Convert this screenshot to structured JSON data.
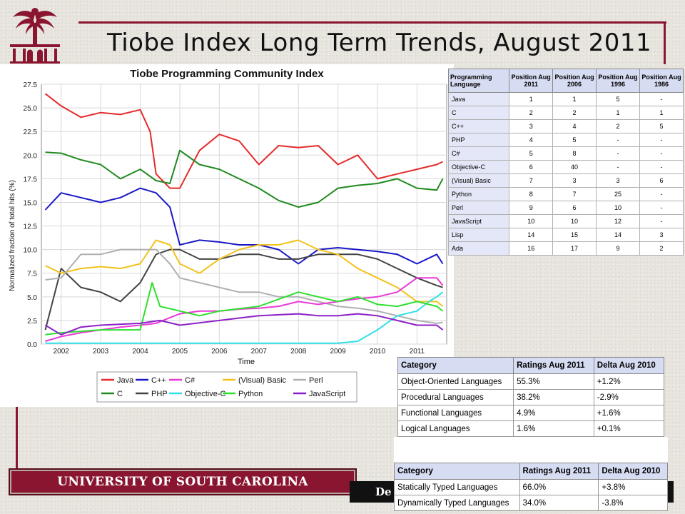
{
  "slide": {
    "title": "Tiobe Index Long Term Trends, August 2011",
    "banner": "UNIVERSITY OF SOUTH CAROLINA",
    "banner_right_partial": "De"
  },
  "colors": {
    "garnet": "#8a1530",
    "table_header": "#d6dcf2"
  },
  "chart_data": {
    "type": "line",
    "title": "Tiobe Programming Community Index",
    "xlabel": "Time",
    "ylabel": "Normalized fraction of total hits (%)",
    "xlim": [
      2001.5,
      2011.75
    ],
    "ylim": [
      0,
      27.5
    ],
    "xticks": [
      "2002",
      "2003",
      "2004",
      "2005",
      "2006",
      "2007",
      "2008",
      "2009",
      "2010",
      "2011"
    ],
    "yticks": [
      "0.0",
      "2.5",
      "5.0",
      "7.5",
      "10.0",
      "12.5",
      "15.0",
      "17.5",
      "20.0",
      "22.5",
      "25.0",
      "27.5"
    ],
    "grid": true,
    "legend_position": "bottom",
    "series": [
      {
        "name": "Java",
        "color": "#e52a2a",
        "x": [
          2001.6,
          2002.0,
          2002.5,
          2003.0,
          2003.5,
          2004.0,
          2004.25,
          2004.4,
          2004.75,
          2005.0,
          2005.5,
          2006.0,
          2006.5,
          2007.0,
          2007.5,
          2008.0,
          2008.5,
          2009.0,
          2009.5,
          2010.0,
          2010.5,
          2011.0,
          2011.5,
          2011.65
        ],
        "y": [
          26.5,
          25.2,
          24.0,
          24.5,
          24.3,
          24.8,
          22.5,
          18.0,
          16.5,
          16.5,
          20.5,
          22.2,
          21.5,
          19.0,
          21.0,
          20.8,
          21.0,
          19.0,
          20.0,
          17.5,
          18.0,
          18.5,
          19.0,
          19.3
        ]
      },
      {
        "name": "C",
        "color": "#1f8a1f",
        "x": [
          2001.6,
          2002.0,
          2002.5,
          2003.0,
          2003.5,
          2004.0,
          2004.4,
          2004.75,
          2005.0,
          2005.5,
          2006.0,
          2006.5,
          2007.0,
          2007.5,
          2008.0,
          2008.5,
          2009.0,
          2009.5,
          2010.0,
          2010.5,
          2011.0,
          2011.5,
          2011.65
        ],
        "y": [
          20.3,
          20.2,
          19.5,
          19.0,
          17.5,
          18.5,
          17.3,
          17.0,
          20.5,
          19.0,
          18.5,
          17.5,
          16.5,
          15.2,
          14.5,
          15.0,
          16.5,
          16.8,
          17.0,
          17.5,
          16.5,
          16.3,
          17.5
        ]
      },
      {
        "name": "C++",
        "color": "#1818c8",
        "x": [
          2001.6,
          2002.0,
          2002.5,
          2003.0,
          2003.5,
          2004.0,
          2004.4,
          2004.75,
          2005.0,
          2005.5,
          2006.0,
          2006.5,
          2007.0,
          2007.5,
          2008.0,
          2008.5,
          2009.0,
          2009.5,
          2010.0,
          2010.5,
          2011.0,
          2011.5,
          2011.65
        ],
        "y": [
          14.2,
          16.0,
          15.5,
          15.0,
          15.5,
          16.5,
          16.0,
          14.5,
          10.5,
          11.0,
          10.8,
          10.5,
          10.5,
          10.0,
          8.5,
          10.0,
          10.2,
          10.0,
          9.8,
          9.5,
          8.5,
          9.5,
          8.5
        ]
      },
      {
        "name": "PHP",
        "color": "#444444",
        "x": [
          2001.6,
          2002.0,
          2002.5,
          2003.0,
          2003.5,
          2004.0,
          2004.4,
          2004.75,
          2005.0,
          2005.5,
          2006.0,
          2006.5,
          2007.0,
          2007.5,
          2008.0,
          2008.5,
          2009.0,
          2009.5,
          2010.0,
          2010.5,
          2011.0,
          2011.5,
          2011.65
        ],
        "y": [
          1.5,
          8.0,
          6.0,
          5.5,
          4.5,
          6.5,
          9.5,
          10.0,
          10.0,
          9.0,
          9.0,
          9.5,
          9.5,
          9.0,
          9.0,
          9.5,
          9.5,
          9.5,
          9.0,
          8.0,
          7.0,
          6.2,
          6.0
        ]
      },
      {
        "name": "(Visual) Basic",
        "color": "#f2c21b",
        "x": [
          2001.6,
          2002.0,
          2002.5,
          2003.0,
          2003.5,
          2004.0,
          2004.4,
          2004.75,
          2005.0,
          2005.5,
          2006.0,
          2006.5,
          2007.0,
          2007.5,
          2008.0,
          2008.5,
          2009.0,
          2009.5,
          2010.0,
          2010.5,
          2011.0,
          2011.5,
          2011.65
        ],
        "y": [
          8.3,
          7.5,
          8.0,
          8.2,
          8.0,
          8.5,
          11.0,
          10.5,
          8.5,
          7.5,
          9.0,
          10.0,
          10.5,
          10.5,
          11.0,
          10.0,
          9.5,
          8.0,
          7.0,
          6.0,
          4.5,
          4.5,
          4.0
        ]
      },
      {
        "name": "Perl",
        "color": "#b0b0b0",
        "x": [
          2001.6,
          2002.0,
          2002.5,
          2003.0,
          2003.5,
          2004.0,
          2004.4,
          2004.75,
          2005.0,
          2005.5,
          2006.0,
          2006.5,
          2007.0,
          2007.5,
          2008.0,
          2008.5,
          2009.0,
          2009.5,
          2010.0,
          2010.5,
          2011.0,
          2011.5,
          2011.65
        ],
        "y": [
          6.8,
          7.0,
          9.5,
          9.5,
          10.0,
          10.0,
          10.0,
          8.5,
          7.0,
          6.5,
          6.0,
          5.5,
          5.5,
          5.0,
          5.0,
          4.5,
          4.0,
          3.8,
          3.5,
          3.0,
          2.5,
          2.2,
          2.3
        ]
      },
      {
        "name": "C#",
        "color": "#e83ad8",
        "x": [
          2001.6,
          2002.0,
          2002.5,
          2003.0,
          2003.5,
          2004.0,
          2004.4,
          2004.75,
          2005.0,
          2005.5,
          2006.0,
          2006.5,
          2007.0,
          2007.5,
          2008.0,
          2008.5,
          2009.0,
          2009.5,
          2010.0,
          2010.5,
          2011.0,
          2011.5,
          2011.65
        ],
        "y": [
          0.3,
          0.8,
          1.2,
          1.5,
          1.8,
          2.0,
          2.2,
          2.8,
          3.2,
          3.5,
          3.5,
          3.7,
          3.8,
          4.0,
          4.5,
          4.2,
          4.5,
          4.8,
          5.0,
          5.5,
          7.0,
          7.0,
          6.2
        ]
      },
      {
        "name": "Objective-C",
        "color": "#30e0e8",
        "x": [
          2001.6,
          2002.0,
          2003.0,
          2004.0,
          2005.0,
          2006.0,
          2007.0,
          2008.0,
          2009.0,
          2009.5,
          2010.0,
          2010.5,
          2011.0,
          2011.3,
          2011.5,
          2011.65
        ],
        "y": [
          0.1,
          0.1,
          0.1,
          0.1,
          0.1,
          0.1,
          0.1,
          0.1,
          0.1,
          0.3,
          1.5,
          3.0,
          3.5,
          4.5,
          5.0,
          5.5
        ]
      },
      {
        "name": "Python",
        "color": "#2ee02e",
        "x": [
          2001.6,
          2002.0,
          2003.0,
          2004.0,
          2004.3,
          2004.5,
          2005.0,
          2005.5,
          2006.0,
          2007.0,
          2008.0,
          2008.5,
          2009.0,
          2009.5,
          2010.0,
          2010.5,
          2011.0,
          2011.5,
          2011.65
        ],
        "y": [
          1.0,
          1.2,
          1.5,
          1.5,
          6.5,
          4.0,
          3.5,
          3.0,
          3.5,
          4.0,
          5.5,
          5.0,
          4.5,
          5.0,
          4.2,
          4.0,
          4.5,
          4.0,
          3.5
        ]
      },
      {
        "name": "JavaScript",
        "color": "#8c20c8",
        "x": [
          2001.6,
          2002.0,
          2002.5,
          2003.0,
          2004.0,
          2004.5,
          2005.0,
          2006.0,
          2007.0,
          2008.0,
          2008.5,
          2009.0,
          2009.5,
          2010.0,
          2010.5,
          2011.0,
          2011.5,
          2011.65
        ],
        "y": [
          2.0,
          1.0,
          1.8,
          2.0,
          2.2,
          2.5,
          2.0,
          2.5,
          3.0,
          3.2,
          3.0,
          3.0,
          3.2,
          3.0,
          2.5,
          2.0,
          2.0,
          1.5
        ]
      }
    ],
    "legend": [
      [
        "Java",
        "C++",
        "C#",
        "(Visual) Basic",
        "Perl"
      ],
      [
        "C",
        "PHP",
        "Objective-C",
        "Python",
        "JavaScript"
      ]
    ]
  },
  "position_table": {
    "headers": [
      "Programming Language",
      "Position Aug 2011",
      "Position Aug 2006",
      "Position Aug 1996",
      "Position Aug 1986"
    ],
    "rows": [
      [
        "Java",
        "1",
        "1",
        "5",
        "-"
      ],
      [
        "C",
        "2",
        "2",
        "1",
        "1"
      ],
      [
        "C++",
        "3",
        "4",
        "2",
        "5"
      ],
      [
        "PHP",
        "4",
        "5",
        "-",
        "-"
      ],
      [
        "C#",
        "5",
        "8",
        "-",
        "-"
      ],
      [
        "Objective-C",
        "6",
        "40",
        "-",
        "-"
      ],
      [
        "(Visual) Basic",
        "7",
        "3",
        "3",
        "6"
      ],
      [
        "Python",
        "8",
        "7",
        "25",
        "-"
      ],
      [
        "Perl",
        "9",
        "6",
        "10",
        "-"
      ],
      [
        "JavaScript",
        "10",
        "10",
        "12",
        "-"
      ],
      [
        "Lisp",
        "14",
        "15",
        "14",
        "3"
      ],
      [
        "Ada",
        "16",
        "17",
        "9",
        "2"
      ]
    ]
  },
  "paradigm_table": {
    "headers": [
      "Category",
      "Ratings Aug 2011",
      "Delta Aug 2010"
    ],
    "rows": [
      [
        "Object-Oriented Languages",
        "55.3%",
        "+1.2%"
      ],
      [
        "Procedural Languages",
        "38.2%",
        "-2.9%"
      ],
      [
        "Functional Languages",
        "4.9%",
        "+1.6%"
      ],
      [
        "Logical Languages",
        "1.6%",
        "+0.1%"
      ]
    ]
  },
  "typing_table": {
    "headers": [
      "Category",
      "Ratings Aug 2011",
      "Delta Aug 2010"
    ],
    "rows": [
      [
        "Statically Typed Languages",
        "66.0%",
        "+3.8%"
      ],
      [
        "Dynamically Typed Languages",
        "34.0%",
        "-3.8%"
      ]
    ]
  }
}
